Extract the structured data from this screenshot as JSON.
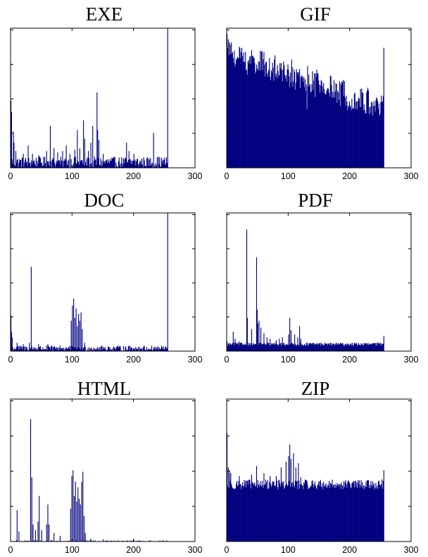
{
  "figure": {
    "bar_color": "#000080"
  },
  "chart_data": [
    {
      "type": "bar",
      "title": "EXE",
      "xlabel": "",
      "ylabel": "",
      "xlim": [
        0,
        300
      ],
      "xticks": [
        0,
        100,
        200,
        300
      ],
      "ylim": [
        0,
        100
      ],
      "yticks_count": 4,
      "bins": 256,
      "profile": {
        "baseline": 4,
        "noise": 4,
        "spikes": [
          [
            0,
            48
          ],
          [
            1,
            40
          ],
          [
            4,
            26
          ],
          [
            5,
            18
          ],
          [
            8,
            12
          ],
          [
            20,
            10
          ],
          [
            28,
            16
          ],
          [
            35,
            10
          ],
          [
            45,
            9
          ],
          [
            58,
            12
          ],
          [
            64,
            30
          ],
          [
            70,
            14
          ],
          [
            76,
            11
          ],
          [
            84,
            12
          ],
          [
            90,
            16
          ],
          [
            96,
            10
          ],
          [
            104,
            13
          ],
          [
            108,
            27
          ],
          [
            112,
            14
          ],
          [
            118,
            34
          ],
          [
            120,
            21
          ],
          [
            126,
            12
          ],
          [
            130,
            18
          ],
          [
            133,
            30
          ],
          [
            140,
            54
          ],
          [
            141,
            27
          ],
          [
            143,
            20
          ],
          [
            150,
            10
          ],
          [
            188,
            18
          ],
          [
            192,
            12
          ],
          [
            200,
            10
          ],
          [
            232,
            25
          ],
          [
            240,
            8
          ],
          [
            248,
            6
          ],
          [
            255,
            100
          ]
        ]
      }
    },
    {
      "type": "bar",
      "title": "GIF",
      "xlabel": "",
      "ylabel": "",
      "xlim": [
        0,
        300
      ],
      "xticks": [
        0,
        100,
        200,
        300
      ],
      "ylim": [
        0,
        100
      ],
      "yticks_count": 4,
      "bins": 256,
      "profile": {
        "start": 85,
        "end": 46,
        "noise": 9,
        "spikes": [
          [
            0,
            96
          ],
          [
            2,
            92
          ],
          [
            4,
            90
          ],
          [
            8,
            82
          ],
          [
            25,
            80
          ],
          [
            48,
            74
          ],
          [
            64,
            76
          ],
          [
            92,
            76
          ],
          [
            130,
            42
          ],
          [
            131,
            73
          ],
          [
            255,
            86
          ]
        ]
      }
    },
    {
      "type": "bar",
      "title": "DOC",
      "xlabel": "",
      "ylabel": "",
      "xlim": [
        0,
        300
      ],
      "xticks": [
        0,
        100,
        200,
        300
      ],
      "ylim": [
        0,
        100
      ],
      "yticks_count": 4,
      "bins": 256,
      "profile": {
        "baseline": 2,
        "noise": 2,
        "spikes": [
          [
            0,
            26
          ],
          [
            1,
            14
          ],
          [
            2,
            10
          ],
          [
            10,
            6
          ],
          [
            20,
            5
          ],
          [
            30,
            6
          ],
          [
            33,
            61
          ],
          [
            45,
            5
          ],
          [
            60,
            5
          ],
          [
            80,
            4
          ],
          [
            98,
            22
          ],
          [
            100,
            33
          ],
          [
            102,
            38
          ],
          [
            104,
            24
          ],
          [
            106,
            31
          ],
          [
            108,
            18
          ],
          [
            110,
            27
          ],
          [
            112,
            22
          ],
          [
            114,
            28
          ],
          [
            116,
            16
          ],
          [
            120,
            6
          ],
          [
            150,
            3
          ],
          [
            200,
            2
          ],
          [
            255,
            100
          ]
        ]
      }
    },
    {
      "type": "bar",
      "title": "PDF",
      "xlabel": "",
      "ylabel": "",
      "xlim": [
        0,
        300
      ],
      "xticks": [
        0,
        100,
        200,
        300
      ],
      "ylim": [
        0,
        100
      ],
      "yticks_count": 4,
      "bins": 256,
      "profile": {
        "baseline": 5,
        "noise": 1.2,
        "spikes": [
          [
            0,
            7
          ],
          [
            10,
            14
          ],
          [
            13,
            9
          ],
          [
            20,
            7
          ],
          [
            32,
            88
          ],
          [
            33,
            24
          ],
          [
            40,
            16
          ],
          [
            48,
            68
          ],
          [
            49,
            30
          ],
          [
            50,
            20
          ],
          [
            52,
            22
          ],
          [
            55,
            17
          ],
          [
            60,
            13
          ],
          [
            65,
            10
          ],
          [
            70,
            9
          ],
          [
            80,
            8
          ],
          [
            85,
            9
          ],
          [
            90,
            10
          ],
          [
            100,
            12
          ],
          [
            102,
            24
          ],
          [
            104,
            15
          ],
          [
            110,
            12
          ],
          [
            115,
            10
          ],
          [
            118,
            18
          ],
          [
            120,
            9
          ],
          [
            255,
            11
          ]
        ]
      }
    },
    {
      "type": "bar",
      "title": "HTML",
      "xlabel": "",
      "ylabel": "",
      "xlim": [
        0,
        300
      ],
      "xticks": [
        0,
        100,
        200,
        300
      ],
      "ylim": [
        0,
        100
      ],
      "yticks_count": 4,
      "bins": 256,
      "profile": {
        "baseline": 0,
        "noise": 0.8,
        "spikes": [
          [
            10,
            22
          ],
          [
            13,
            7
          ],
          [
            32,
            86
          ],
          [
            34,
            45
          ],
          [
            36,
            12
          ],
          [
            40,
            8
          ],
          [
            44,
            14
          ],
          [
            46,
            32
          ],
          [
            50,
            8
          ],
          [
            58,
            12
          ],
          [
            60,
            26
          ],
          [
            62,
            12
          ],
          [
            70,
            6
          ],
          [
            80,
            4
          ],
          [
            97,
            23
          ],
          [
            99,
            46
          ],
          [
            101,
            50
          ],
          [
            103,
            32
          ],
          [
            105,
            42
          ],
          [
            107,
            28
          ],
          [
            109,
            38
          ],
          [
            111,
            30
          ],
          [
            113,
            26
          ],
          [
            115,
            42
          ],
          [
            117,
            49
          ],
          [
            119,
            18
          ],
          [
            121,
            6
          ],
          [
            130,
            2
          ],
          [
            150,
            1.5
          ],
          [
            200,
            1.2
          ]
        ]
      }
    },
    {
      "type": "bar",
      "title": "ZIP",
      "xlabel": "",
      "ylabel": "",
      "xlim": [
        0,
        300
      ],
      "xticks": [
        0,
        100,
        200,
        300
      ],
      "ylim": [
        0,
        100
      ],
      "yticks_count": 4,
      "bins": 256,
      "profile": {
        "baseline": 40,
        "noise": 3.5,
        "spikes": [
          [
            0,
            76
          ],
          [
            2,
            52
          ],
          [
            4,
            50
          ],
          [
            6,
            48
          ],
          [
            20,
            46
          ],
          [
            40,
            47
          ],
          [
            48,
            53
          ],
          [
            60,
            48
          ],
          [
            70,
            46
          ],
          [
            80,
            46
          ],
          [
            88,
            52
          ],
          [
            96,
            56
          ],
          [
            100,
            60
          ],
          [
            102,
            68
          ],
          [
            104,
            58
          ],
          [
            108,
            62
          ],
          [
            112,
            52
          ],
          [
            116,
            55
          ],
          [
            120,
            45
          ],
          [
            255,
            50
          ]
        ]
      }
    }
  ]
}
